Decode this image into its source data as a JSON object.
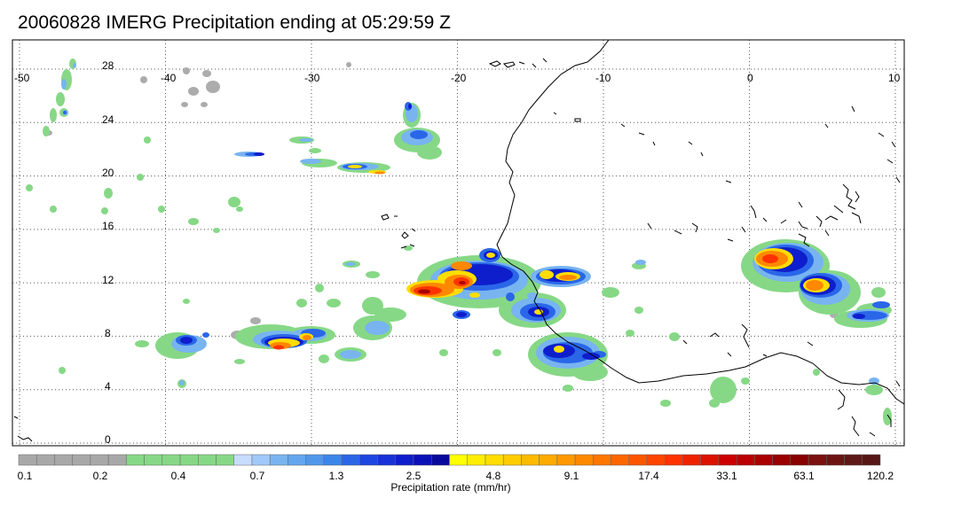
{
  "title": "20060828 IMERG Precipitation ending at 05:29:59 Z",
  "map": {
    "lon_range": [
      -50,
      10
    ],
    "lat_range": [
      -0.5,
      29.5
    ],
    "lon_ticks": [
      "-50",
      "-40",
      "-30",
      "-20",
      "-10",
      "0",
      "10"
    ],
    "lat_ticks": [
      "28",
      "24",
      "20",
      "16",
      "12",
      "8",
      "4",
      "0"
    ],
    "gridlines": "dotted",
    "coastline_color": "#000000"
  },
  "colorbar": {
    "title": "Precipitation rate (mm/hr)",
    "labels": [
      "0.1",
      "0.2",
      "0.4",
      "0.7",
      "1.3",
      "2.5",
      "4.8",
      "9.1",
      "17.4",
      "33.1",
      "63.1",
      "120.2"
    ],
    "colors": [
      "#a8a8a8",
      "#a8a8a8",
      "#a8a8a8",
      "#a8a8a8",
      "#a8a8a8",
      "#a8a8a8",
      "#86d886",
      "#86d886",
      "#86d886",
      "#86d886",
      "#86d886",
      "#86d886",
      "#c8dcff",
      "#a0c8f8",
      "#78b4f0",
      "#64a6ee",
      "#5098ec",
      "#3c86ea",
      "#2a66e8",
      "#1e46e0",
      "#1632d8",
      "#0e1ecc",
      "#0a10b8",
      "#08089c",
      "#ffff00",
      "#ffee00",
      "#ffdd00",
      "#ffcc00",
      "#ffbb00",
      "#ffaa00",
      "#ff9900",
      "#ff8800",
      "#ff7700",
      "#ff6600",
      "#ff5500",
      "#ff4400",
      "#ff3300",
      "#ee2200",
      "#dd1100",
      "#cc0000",
      "#bb0000",
      "#aa0000",
      "#990000",
      "#880000",
      "#7a1010",
      "#6c1414",
      "#5e1818",
      "#561616"
    ]
  }
}
